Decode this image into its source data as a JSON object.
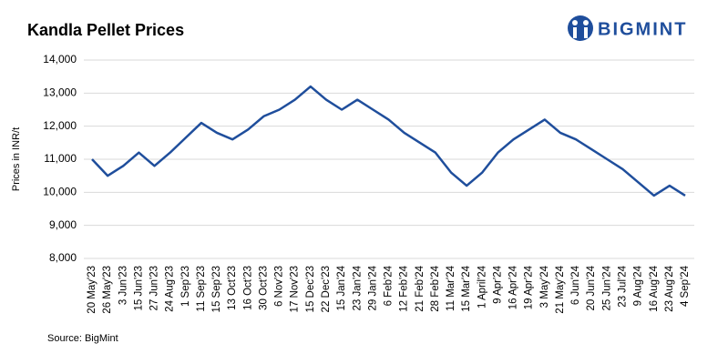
{
  "chart_data": {
    "type": "line",
    "title": "Kandla Pellet Prices",
    "y_label": "Prices in INR/t",
    "source": "Source: BigMint",
    "brand": "BIGMINT",
    "categories": [
      "20 May'23",
      "26 May'23",
      "3 Jun'23",
      "15 Jun'23",
      "27 Jun'23",
      "24 Aug'23",
      "1 Sep'23",
      "11 Sep'23",
      "15 Sep'23",
      "13 Oct'23",
      "16 Oct'23",
      "30 Oct'23",
      "6 Nov'23",
      "17 Nov'23",
      "15 Dec'23",
      "22 Dec'23",
      "15 Jan'24",
      "23 Jan'24",
      "29 Jan'24",
      "6 Feb'24",
      "12 Feb'24",
      "21 Feb'24",
      "28 Feb'24",
      "11 Mar'24",
      "15 Mar'24",
      "1 April'24",
      "9 Apr'24",
      "16 Apr'24",
      "19 Apr'24",
      "3 May'24",
      "21 May'24",
      "6 Jun'24",
      "20 Jun'24",
      "25 Jun'24",
      "23 Jul'24",
      "9 Aug'24",
      "16 Aug'24",
      "23 Aug'24",
      "4 Sep'24"
    ],
    "series": [
      {
        "name": "Kandla Pellet Prices",
        "color": "#1f4e9c",
        "values": [
          11000,
          10500,
          10800,
          11200,
          10800,
          11200,
          11650,
          12100,
          11800,
          11600,
          11900,
          12300,
          12500,
          12800,
          13200,
          12800,
          12500,
          12800,
          12500,
          12200,
          11800,
          11500,
          11200,
          10600,
          10200,
          10600,
          11200,
          11600,
          11900,
          12200,
          11800,
          11600,
          11300,
          11000,
          10700,
          10300,
          9900,
          10200,
          9900
        ]
      }
    ],
    "ylim": [
      8000,
      14000
    ],
    "yticks": [
      {
        "value": 8000,
        "label": "8,000"
      },
      {
        "value": 9000,
        "label": "9,000"
      },
      {
        "value": 10000,
        "label": "10,000"
      },
      {
        "value": 11000,
        "label": "11,000"
      },
      {
        "value": 12000,
        "label": "12,000"
      },
      {
        "value": 13000,
        "label": "13,000"
      },
      {
        "value": 14000,
        "label": "14,000"
      }
    ],
    "grid": true
  }
}
